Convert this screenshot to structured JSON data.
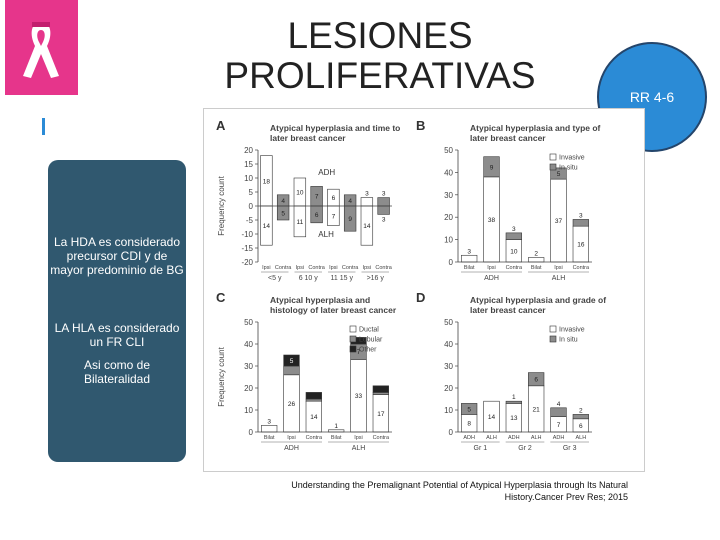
{
  "slide": {
    "title": "LESIONES PROLIFERATIVAS",
    "badge": "RR 4-6",
    "notes": [
      "La HDA es considerado precursor CDI  y de mayor predominio de BG",
      "LA HLA es considerado un FR CLI",
      "Asi como de Bilateralidad"
    ],
    "citation": [
      "Understanding the Premalignant Potential of Atypical Hyperplasia through Its Natural",
      "History.Cancer Prev Res; 2015"
    ]
  },
  "chart_data": [
    {
      "type": "bar",
      "label": "A",
      "title": "Atypical hyperplasia and time to later breast cancer",
      "y_label": "Frequency count",
      "categories": [
        "Ipsi",
        "Contra",
        "Ipsi",
        "Contra",
        "Ipsi",
        "Contra",
        "Ipsi",
        "Contra"
      ],
      "group_labels": [
        "<5 y",
        "6 10 y",
        "11 15 y",
        ">16 y"
      ],
      "bar_colors": [
        "#ffffff",
        "#8c8c8c",
        "#ffffff",
        "#8c8c8c",
        "#ffffff",
        "#8c8c8c",
        "#ffffff",
        "#8c8c8c"
      ],
      "series": [
        {
          "name": "ADH",
          "values": [
            18,
            4,
            10,
            7,
            6,
            4,
            3,
            3
          ]
        },
        {
          "name": "ALH",
          "values": [
            -14,
            -5,
            -11,
            -6,
            -7,
            -9,
            -14,
            -3
          ],
          "value_labels": [
            "14",
            "5",
            "11",
            "6",
            "7",
            "9",
            "14",
            "3"
          ]
        }
      ],
      "ylim": [
        -20,
        20
      ],
      "yticks": [
        20,
        15,
        10,
        5,
        0,
        -5,
        -10,
        -15,
        -20
      ],
      "legend": "inline"
    },
    {
      "type": "stacked_bar",
      "label": "B",
      "title": "Atypical hyperplasia and type of later breast cancer",
      "y_label": null,
      "categories": [
        "Bilat",
        "Ipsi",
        "Contra",
        "Bilat",
        "Ipsi",
        "Contra"
      ],
      "group_labels": [
        "ADH",
        "ALH"
      ],
      "series": [
        {
          "name": "Invasive",
          "color": "#ffffff",
          "values": [
            3,
            38,
            10,
            2,
            37,
            16
          ]
        },
        {
          "name": "In situ",
          "color": "#8c8c8c",
          "values": [
            0,
            9,
            3,
            0,
            5,
            3
          ]
        }
      ],
      "ylim": [
        0,
        50
      ],
      "yticks": [
        0,
        10,
        20,
        30,
        40,
        50
      ],
      "legend": "upper right"
    },
    {
      "type": "stacked_bar",
      "label": "C",
      "title": "Atypical hyperplasia and histology of later breast cancer",
      "y_label": "Frequency count",
      "categories": [
        "Bilat",
        "Ipsi",
        "Contra",
        "Bilat",
        "Ipsi",
        "Contra"
      ],
      "group_labels": [
        "ADH",
        "ALH"
      ],
      "series": [
        {
          "name": "Ductal",
          "color": "#ffffff",
          "values": [
            3,
            26,
            14,
            1,
            33,
            17
          ]
        },
        {
          "name": "Lobular",
          "color": "#8c8c8c",
          "values": [
            0,
            4,
            1,
            0,
            7,
            1
          ]
        },
        {
          "name": "Other",
          "color": "#222222",
          "values": [
            0,
            5,
            3,
            0,
            3,
            3
          ]
        }
      ],
      "ylim": [
        0,
        50
      ],
      "yticks": [
        0,
        10,
        20,
        30,
        40,
        50
      ],
      "legend": "upper right"
    },
    {
      "type": "stacked_bar",
      "label": "D",
      "title": "Atypical hyperplasia and grade of later breast cancer",
      "y_label": null,
      "categories": [
        "ADH",
        "ALH",
        "ADH",
        "ALH",
        "ADH",
        "ALH"
      ],
      "group_labels": [
        "Gr 1",
        "Gr 2",
        "Gr 3"
      ],
      "series": [
        {
          "name": "Invasive",
          "color": "#ffffff",
          "values": [
            8,
            14,
            13,
            21,
            7,
            6
          ]
        },
        {
          "name": "In situ",
          "color": "#8c8c8c",
          "values": [
            5,
            0,
            1,
            6,
            4,
            2
          ]
        }
      ],
      "ylim": [
        0,
        50
      ],
      "yticks": [
        0,
        10,
        20,
        30,
        40,
        50
      ],
      "legend": "upper right"
    }
  ]
}
